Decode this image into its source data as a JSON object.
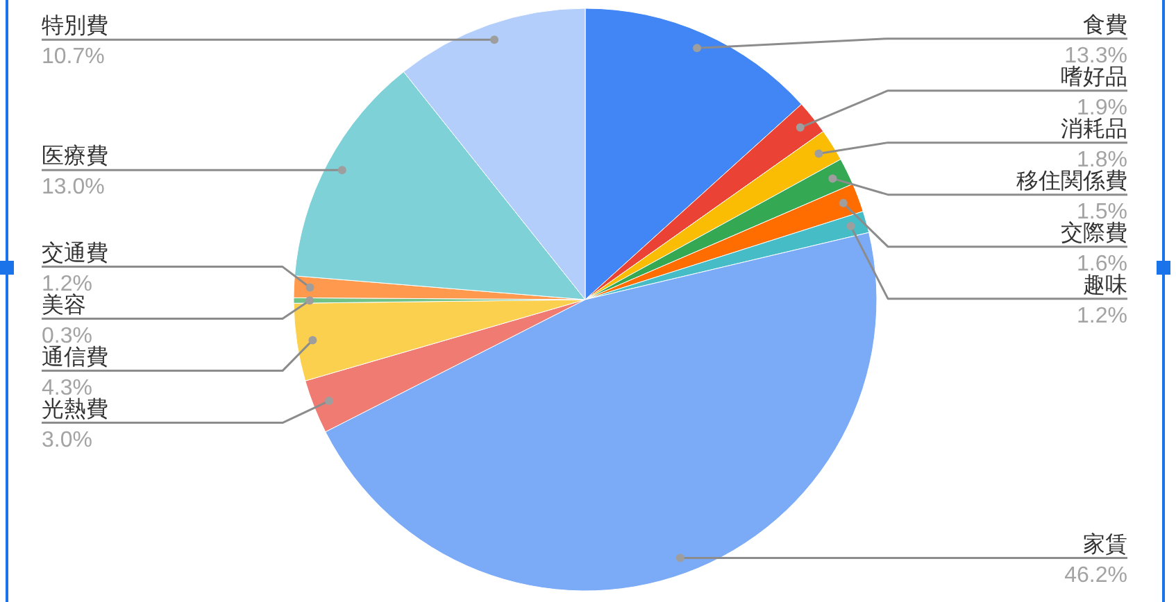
{
  "chart_data": {
    "type": "pie",
    "categories": [
      "食費",
      "嗜好品",
      "消耗品",
      "移住関係費",
      "交際費",
      "趣味",
      "家賃",
      "光熱費",
      "通信費",
      "美容",
      "交通費",
      "医療費",
      "特別費"
    ],
    "values": [
      13.3,
      1.9,
      1.8,
      1.5,
      1.6,
      1.2,
      46.2,
      3.0,
      4.3,
      0.3,
      1.2,
      13.0,
      10.7
    ],
    "colors": [
      "#4285f4",
      "#ea4335",
      "#fbbc04",
      "#34a853",
      "#ff6d01",
      "#46bdc6",
      "#7baaf7",
      "#f07b72",
      "#fcd04f",
      "#71c287",
      "#ff994d",
      "#7ed1d7",
      "#b3cefb"
    ],
    "value_labels": [
      "13.3%",
      "1.9%",
      "1.8%",
      "1.5%",
      "1.6%",
      "1.2%",
      "46.2%",
      "3.0%",
      "4.3%",
      "0.3%",
      "1.2%",
      "13.0%",
      "10.7%"
    ]
  }
}
